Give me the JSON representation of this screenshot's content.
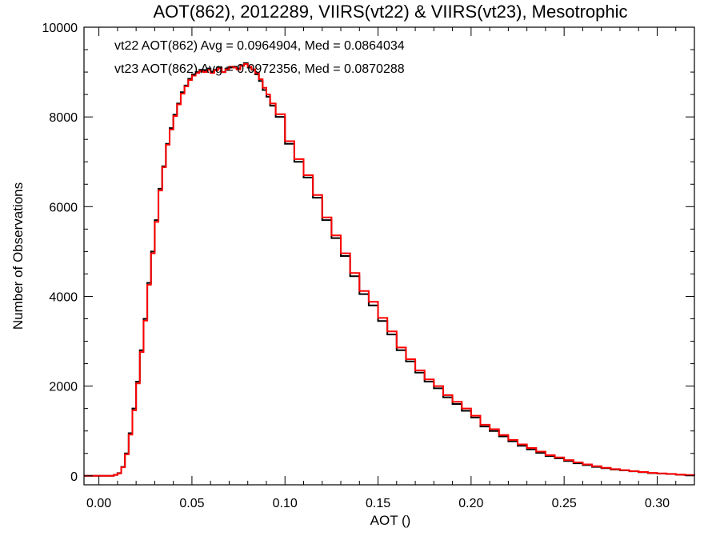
{
  "chart_data": {
    "type": "line",
    "step": true,
    "title": "AOT(862), 2012289, VIIRS(vt22) & VIIRS(vt23), Mesotrophic",
    "xlabel": "AOT ()",
    "ylabel": "Number of Observations",
    "xlim": [
      -0.008,
      0.32
    ],
    "ylim": [
      -200,
      10000
    ],
    "xticks": [
      0.0,
      0.05,
      0.1,
      0.15,
      0.2,
      0.25,
      0.3
    ],
    "xtick_labels": [
      "0.00",
      "0.05",
      "0.10",
      "0.15",
      "0.20",
      "0.25",
      "0.30"
    ],
    "yticks": [
      0,
      2000,
      4000,
      6000,
      8000,
      10000
    ],
    "ytick_labels": [
      "0",
      "2000",
      "4000",
      "6000",
      "8000",
      "10000"
    ],
    "grid": false,
    "annotations": [
      {
        "text": "vt22 AOT(862) Avg = 0.0964904, Med = 0.0864034",
        "color": "#000000"
      },
      {
        "text": "vt23 AOT(862) Avg = 0.0972356, Med = 0.0870288",
        "color": "#ff0000"
      }
    ],
    "series": [
      {
        "color": "#000000",
        "x": [
          -0.008,
          0.0,
          0.005,
          0.008,
          0.01,
          0.012,
          0.014,
          0.016,
          0.018,
          0.02,
          0.022,
          0.024,
          0.026,
          0.028,
          0.03,
          0.032,
          0.034,
          0.036,
          0.038,
          0.04,
          0.042,
          0.044,
          0.046,
          0.048,
          0.05,
          0.052,
          0.054,
          0.056,
          0.058,
          0.06,
          0.062,
          0.064,
          0.066,
          0.068,
          0.07,
          0.072,
          0.074,
          0.076,
          0.078,
          0.08,
          0.082,
          0.084,
          0.086,
          0.088,
          0.09,
          0.092,
          0.095,
          0.1,
          0.105,
          0.11,
          0.115,
          0.12,
          0.125,
          0.13,
          0.135,
          0.14,
          0.145,
          0.15,
          0.155,
          0.16,
          0.165,
          0.17,
          0.175,
          0.18,
          0.185,
          0.19,
          0.195,
          0.2,
          0.205,
          0.21,
          0.215,
          0.22,
          0.225,
          0.23,
          0.235,
          0.24,
          0.245,
          0.25,
          0.255,
          0.26,
          0.265,
          0.27,
          0.275,
          0.28,
          0.285,
          0.29,
          0.295,
          0.3,
          0.305,
          0.31,
          0.315,
          0.32
        ],
        "y": [
          0,
          0,
          0,
          20,
          60,
          200,
          500,
          950,
          1500,
          2100,
          2800,
          3500,
          4300,
          5000,
          5700,
          6400,
          6900,
          7400,
          7750,
          8050,
          8300,
          8550,
          8700,
          8850,
          8950,
          9000,
          9050,
          9030,
          9080,
          9000,
          9050,
          9100,
          9000,
          9080,
          9100,
          9120,
          9080,
          9150,
          9200,
          9100,
          9050,
          8950,
          8800,
          8600,
          8450,
          8250,
          8000,
          7400,
          7000,
          6650,
          6200,
          5700,
          5300,
          4900,
          4450,
          4050,
          3800,
          3450,
          3150,
          2800,
          2550,
          2300,
          2100,
          1950,
          1750,
          1600,
          1450,
          1300,
          1100,
          1000,
          880,
          770,
          670,
          590,
          510,
          440,
          390,
          330,
          280,
          240,
          200,
          170,
          140,
          120,
          100,
          80,
          60,
          50,
          40,
          25,
          15,
          8
        ]
      },
      {
        "color": "#ff0000",
        "x": [
          -0.008,
          0.0,
          0.005,
          0.008,
          0.01,
          0.012,
          0.014,
          0.016,
          0.018,
          0.02,
          0.022,
          0.024,
          0.026,
          0.028,
          0.03,
          0.032,
          0.034,
          0.036,
          0.038,
          0.04,
          0.042,
          0.044,
          0.046,
          0.048,
          0.05,
          0.052,
          0.054,
          0.056,
          0.058,
          0.06,
          0.062,
          0.064,
          0.066,
          0.068,
          0.07,
          0.072,
          0.074,
          0.076,
          0.078,
          0.08,
          0.082,
          0.084,
          0.086,
          0.088,
          0.09,
          0.092,
          0.095,
          0.1,
          0.105,
          0.11,
          0.115,
          0.12,
          0.125,
          0.13,
          0.135,
          0.14,
          0.145,
          0.15,
          0.155,
          0.16,
          0.165,
          0.17,
          0.175,
          0.18,
          0.185,
          0.19,
          0.195,
          0.2,
          0.205,
          0.21,
          0.215,
          0.22,
          0.225,
          0.23,
          0.235,
          0.24,
          0.245,
          0.25,
          0.255,
          0.26,
          0.265,
          0.27,
          0.275,
          0.28,
          0.285,
          0.29,
          0.295,
          0.3,
          0.305,
          0.31,
          0.315,
          0.32
        ],
        "y": [
          0,
          0,
          0,
          20,
          55,
          190,
          480,
          920,
          1460,
          2060,
          2760,
          3460,
          4260,
          4960,
          5660,
          6360,
          6880,
          7380,
          7720,
          8020,
          8280,
          8520,
          8680,
          8820,
          8920,
          8980,
          9020,
          9000,
          9050,
          8980,
          9040,
          9080,
          9000,
          9060,
          9120,
          9100,
          9060,
          9140,
          9180,
          9120,
          9060,
          8980,
          8840,
          8650,
          8500,
          8300,
          8060,
          7460,
          7060,
          6700,
          6260,
          5760,
          5360,
          4960,
          4520,
          4120,
          3880,
          3520,
          3220,
          2860,
          2600,
          2350,
          2150,
          2000,
          1800,
          1650,
          1500,
          1340,
          1140,
          1040,
          910,
          800,
          700,
          620,
          540,
          460,
          410,
          350,
          300,
          255,
          215,
          180,
          150,
          128,
          106,
          86,
          66,
          55,
          44,
          28,
          18,
          10
        ]
      }
    ]
  }
}
